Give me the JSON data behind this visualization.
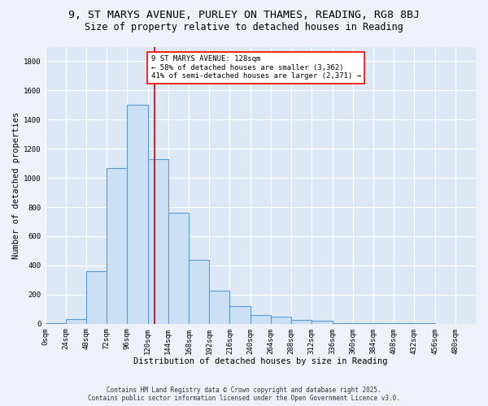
{
  "title_line1": "9, ST MARYS AVENUE, PURLEY ON THAMES, READING, RG8 8BJ",
  "title_line2": "Size of property relative to detached houses in Reading",
  "xlabel": "Distribution of detached houses by size in Reading",
  "ylabel": "Number of detached properties",
  "bar_values": [
    5,
    30,
    360,
    1070,
    1500,
    1130,
    760,
    440,
    225,
    120,
    60,
    50,
    25,
    20,
    5,
    5,
    2,
    2,
    2
  ],
  "bar_left_edges": [
    0,
    24,
    48,
    72,
    96,
    120,
    144,
    168,
    192,
    216,
    240,
    264,
    288,
    312,
    336,
    360,
    384,
    408,
    432
  ],
  "bin_width": 24,
  "tick_positions": [
    0,
    24,
    48,
    72,
    96,
    120,
    144,
    168,
    192,
    216,
    240,
    264,
    288,
    312,
    336,
    360,
    384,
    408,
    432,
    456,
    480
  ],
  "tick_labels": [
    "0sqm",
    "24sqm",
    "48sqm",
    "72sqm",
    "96sqm",
    "120sqm",
    "144sqm",
    "168sqm",
    "192sqm",
    "216sqm",
    "240sqm",
    "264sqm",
    "288sqm",
    "312sqm",
    "336sqm",
    "360sqm",
    "384sqm",
    "408sqm",
    "432sqm",
    "456sqm",
    "480sqm"
  ],
  "bar_facecolor": "#cce0f5",
  "bar_edgecolor": "#5b9bd5",
  "vline_x": 128,
  "vline_color": "#cc0000",
  "annotation_text": "9 ST MARYS AVENUE: 128sqm\n← 58% of detached houses are smaller (3,362)\n41% of semi-detached houses are larger (2,371) →",
  "ylim": [
    0,
    1900
  ],
  "xlim_min": 0,
  "xlim_max": 504,
  "background_color": "#dce8f5",
  "grid_color": "#ffffff",
  "fig_background": "#eef2f8",
  "footer_line1": "Contains HM Land Registry data © Crown copyright and database right 2025.",
  "footer_line2": "Contains public sector information licensed under the Open Government Licence v3.0.",
  "title_fontsize": 9.5,
  "subtitle_fontsize": 8.5,
  "axis_label_fontsize": 7.5,
  "tick_fontsize": 6.5,
  "annotation_fontsize": 6.5,
  "footer_fontsize": 5.5,
  "yticks": [
    0,
    200,
    400,
    600,
    800,
    1000,
    1200,
    1400,
    1600,
    1800
  ]
}
